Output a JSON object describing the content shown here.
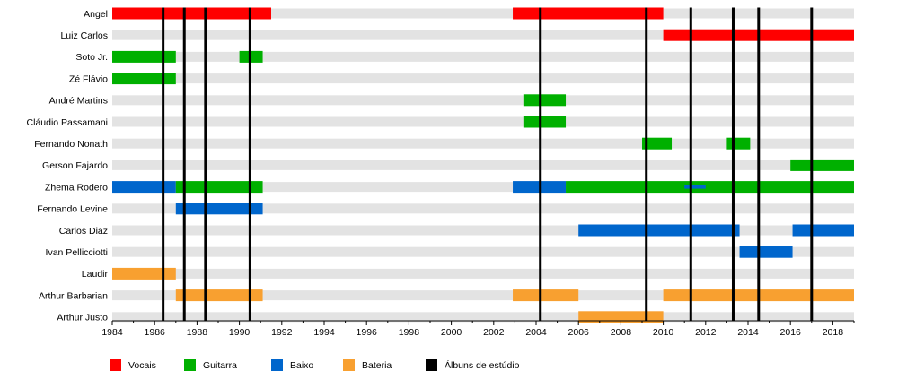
{
  "chart_data": {
    "type": "timeline",
    "x_range": [
      1984,
      2019
    ],
    "x_ticks": [
      1984,
      1986,
      1988,
      1990,
      1992,
      1994,
      1996,
      1998,
      2000,
      2002,
      2004,
      2006,
      2008,
      2010,
      2012,
      2014,
      2016,
      2018
    ],
    "members": [
      "Angel",
      "Luiz Carlos",
      "Soto Jr.",
      "Zé Flávio",
      "André Martins",
      "Cláudio Passamani",
      "Fernando Nonath",
      "Gerson Fajardo",
      "Zhema Rodero",
      "Fernando Levine",
      "Carlos Diaz",
      "Ivan Pellicciotti",
      "Laudir",
      "Arthur Barbarian",
      "Arthur Justo"
    ],
    "roles": [
      {
        "key": "vocals",
        "label": "Vocais",
        "color": "#ff0000"
      },
      {
        "key": "guitar",
        "label": "Guitarra",
        "color": "#00b000"
      },
      {
        "key": "bass",
        "label": "Baixo",
        "color": "#0066cc"
      },
      {
        "key": "drums",
        "label": "Bateria",
        "color": "#f8a030"
      },
      {
        "key": "album",
        "label": "Álbuns de estúdio",
        "color": "#000000"
      }
    ],
    "bars": [
      {
        "member": 0,
        "role": "vocals",
        "start": 1984.0,
        "end": 1991.5
      },
      {
        "member": 0,
        "role": "vocals",
        "start": 2002.9,
        "end": 2010.0
      },
      {
        "member": 1,
        "role": "vocals",
        "start": 2010.0,
        "end": 2019.0
      },
      {
        "member": 2,
        "role": "guitar",
        "start": 1984.0,
        "end": 1987.0
      },
      {
        "member": 2,
        "role": "guitar",
        "start": 1990.0,
        "end": 1991.1
      },
      {
        "member": 3,
        "role": "guitar",
        "start": 1984.0,
        "end": 1987.0
      },
      {
        "member": 4,
        "role": "guitar",
        "start": 2003.4,
        "end": 2005.4
      },
      {
        "member": 5,
        "role": "guitar",
        "start": 2003.4,
        "end": 2005.4
      },
      {
        "member": 6,
        "role": "guitar",
        "start": 2009.0,
        "end": 2010.4
      },
      {
        "member": 6,
        "role": "guitar",
        "start": 2013.0,
        "end": 2014.1
      },
      {
        "member": 7,
        "role": "guitar",
        "start": 2016.0,
        "end": 2019.0
      },
      {
        "member": 8,
        "role": "bass",
        "start": 1984.0,
        "end": 1987.0
      },
      {
        "member": 8,
        "role": "guitar",
        "start": 1987.0,
        "end": 1991.1
      },
      {
        "member": 8,
        "role": "bass",
        "start": 2002.9,
        "end": 2005.4
      },
      {
        "member": 8,
        "role": "guitar",
        "start": 2005.4,
        "end": 2019.0
      },
      {
        "member": 9,
        "role": "bass",
        "start": 1987.0,
        "end": 1991.1
      },
      {
        "member": 10,
        "role": "bass",
        "start": 2006.0,
        "end": 2013.6
      },
      {
        "member": 10,
        "role": "bass",
        "start": 2016.1,
        "end": 2019.0
      },
      {
        "member": 11,
        "role": "bass",
        "start": 2013.6,
        "end": 2016.1
      },
      {
        "member": 12,
        "role": "drums",
        "start": 1984.0,
        "end": 1987.0
      },
      {
        "member": 13,
        "role": "drums",
        "start": 1987.0,
        "end": 1991.1
      },
      {
        "member": 13,
        "role": "drums",
        "start": 2002.9,
        "end": 2006.0
      },
      {
        "member": 13,
        "role": "drums",
        "start": 2010.0,
        "end": 2019.0
      },
      {
        "member": 14,
        "role": "drums",
        "start": 2006.0,
        "end": 2010.0
      }
    ],
    "overlays": [
      {
        "member": 8,
        "role": "bass",
        "start": 2011.0,
        "end": 2012.0
      }
    ],
    "album_years": [
      1986.4,
      1987.4,
      1988.4,
      1990.5,
      2004.2,
      2009.2,
      2011.3,
      2013.3,
      2014.5,
      2017.0
    ]
  }
}
